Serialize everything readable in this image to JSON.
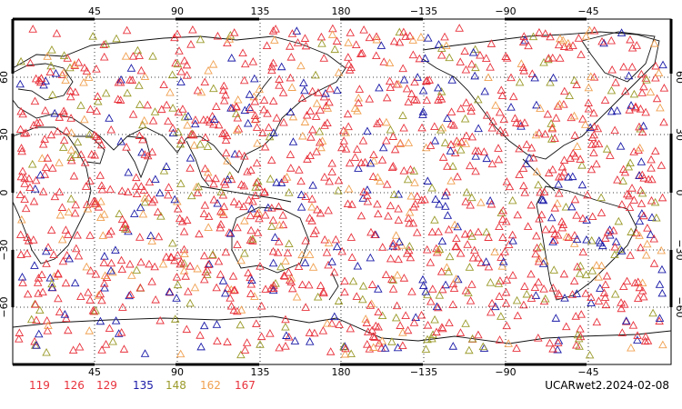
{
  "map": {
    "lon_ticks": [
      "45",
      "90",
      "135",
      "180",
      "−135",
      "−90",
      "−45"
    ],
    "lat_ticks": [
      "60",
      "30",
      "0",
      "−30",
      "−60"
    ],
    "gridlines": "dotted",
    "projection": "cylindrical",
    "marker_symbol": "triangle-outline"
  },
  "legend": [
    {
      "label": "119",
      "color": "#e8323c"
    },
    {
      "label": "126",
      "color": "#e8323c"
    },
    {
      "label": "129",
      "color": "#e8323c"
    },
    {
      "label": "135",
      "color": "#1a1aa8"
    },
    {
      "label": "148",
      "color": "#9a9a2a"
    },
    {
      "label": "162",
      "color": "#f0a050"
    },
    {
      "label": "167",
      "color": "#e8323c"
    }
  ],
  "product_label": "UCARwet2.2024-02-08"
}
